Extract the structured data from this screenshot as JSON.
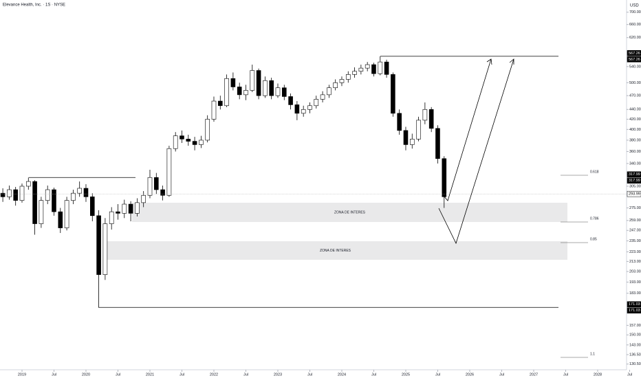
{
  "chart_data": {
    "type": "candlestick",
    "title": "Elevance Health, Inc. · 1S · NYSE",
    "y_axis_label": "USD",
    "log_scale": true,
    "grid": false,
    "ylim": [
      127,
      742
    ],
    "yticks": [
      {
        "value": 700,
        "label": "700.00"
      },
      {
        "value": 660,
        "label": "660.00"
      },
      {
        "value": 620,
        "label": "620.00"
      },
      {
        "value": 540,
        "label": "540.00"
      },
      {
        "value": 500,
        "label": "500.00"
      },
      {
        "value": 470,
        "label": "470.00"
      },
      {
        "value": 440,
        "label": "440.00"
      },
      {
        "value": 420,
        "label": "420.00"
      },
      {
        "value": 400,
        "label": "400.00"
      },
      {
        "value": 380,
        "label": "380.00"
      },
      {
        "value": 360,
        "label": "360.00"
      },
      {
        "value": 340,
        "label": "340.00"
      },
      {
        "value": 305,
        "label": "305.00"
      },
      {
        "value": 275,
        "label": "275.00"
      },
      {
        "value": 259,
        "label": "259.00"
      },
      {
        "value": 247,
        "label": "247.00"
      },
      {
        "value": 235,
        "label": "235.00"
      },
      {
        "value": 223,
        "label": "223.00"
      },
      {
        "value": 213,
        "label": "213.00"
      },
      {
        "value": 203,
        "label": "203.00"
      },
      {
        "value": 193,
        "label": "193.00"
      },
      {
        "value": 183,
        "label": "183.00"
      },
      {
        "value": 157,
        "label": "157.00"
      },
      {
        "value": 150,
        "label": "150.00"
      },
      {
        "value": 143,
        "label": "143.00"
      },
      {
        "value": 136.5,
        "label": "136.50"
      },
      {
        "value": 130.5,
        "label": "130.50"
      }
    ],
    "xlim": [
      2018.656,
      2028.452
    ],
    "xticks": [
      2019,
      {
        "value": 2019.5,
        "label": "Jul"
      },
      2020,
      {
        "value": 2020.5,
        "label": "Jul"
      },
      2021,
      {
        "value": 2021.5,
        "label": "Jul"
      },
      2022,
      {
        "value": 2022.5,
        "label": "Jul"
      },
      2023,
      {
        "value": 2023.5,
        "label": "Jul"
      },
      2024,
      {
        "value": 2024.5,
        "label": "Jul"
      },
      2025,
      {
        "value": 2025.5,
        "label": "Jul"
      },
      2026,
      {
        "value": 2026.5,
        "label": "Jul"
      },
      2027,
      {
        "value": 2027.5,
        "label": "Jul"
      },
      2028,
      {
        "value": 2028.5,
        "label": "Jul"
      }
    ],
    "up_color": "#ffffff",
    "down_color": "#000000",
    "x": [
      2018.7,
      2018.8,
      2018.9,
      2019.0,
      2019.1,
      2019.2,
      2019.3,
      2019.4,
      2019.5,
      2019.6,
      2019.7,
      2019.8,
      2019.9,
      2020.0,
      2020.1,
      2020.2,
      2020.3,
      2020.4,
      2020.5,
      2020.6,
      2020.7,
      2020.8,
      2020.9,
      2021.0,
      2021.1,
      2021.2,
      2021.3,
      2021.4,
      2021.5,
      2021.6,
      2021.7,
      2021.8,
      2021.9,
      2022.0,
      2022.1,
      2022.2,
      2022.3,
      2022.4,
      2022.5,
      2022.6,
      2022.7,
      2022.8,
      2022.9,
      2023.0,
      2023.1,
      2023.2,
      2023.3,
      2023.4,
      2023.5,
      2023.6,
      2023.7,
      2023.8,
      2023.9,
      2024.0,
      2024.1,
      2024.2,
      2024.3,
      2024.4,
      2024.5,
      2024.6,
      2024.7,
      2024.8,
      2024.9,
      2025.0,
      2025.1,
      2025.2,
      2025.3,
      2025.4,
      2025.5,
      2025.6
    ],
    "open": [
      295,
      290,
      300,
      285,
      305,
      312,
      255,
      285,
      300,
      270,
      250,
      285,
      295,
      302,
      290,
      265,
      200,
      255,
      270,
      268,
      280,
      268,
      282,
      292,
      318,
      300,
      292,
      365,
      388,
      382,
      378,
      372,
      380,
      420,
      458,
      448,
      510,
      490,
      472,
      482,
      530,
      470,
      505,
      470,
      488,
      468,
      450,
      432,
      440,
      448,
      462,
      472,
      488,
      500,
      508,
      520,
      528,
      536,
      545,
      522,
      552,
      520,
      432,
      398,
      372,
      382,
      418,
      440,
      402,
      348
    ],
    "high": [
      302,
      306,
      304,
      309,
      318,
      314,
      290,
      306,
      303,
      275,
      290,
      300,
      312,
      308,
      295,
      272,
      262,
      276,
      280,
      286,
      284,
      288,
      298,
      330,
      325,
      306,
      370,
      395,
      398,
      390,
      386,
      388,
      428,
      468,
      470,
      520,
      525,
      500,
      495,
      545,
      535,
      515,
      512,
      498,
      495,
      475,
      458,
      448,
      455,
      470,
      480,
      495,
      508,
      515,
      528,
      538,
      545,
      552,
      550,
      567.26,
      558,
      525,
      440,
      405,
      392,
      425,
      455,
      445,
      408,
      352
    ],
    "low": [
      283,
      286,
      278,
      282,
      300,
      242,
      250,
      280,
      265,
      244,
      247,
      280,
      290,
      283,
      258,
      171.03,
      195,
      248,
      260,
      262,
      258,
      264,
      276,
      288,
      294,
      285,
      290,
      360,
      375,
      370,
      362,
      366,
      376,
      415,
      440,
      445,
      482,
      462,
      460,
      478,
      462,
      465,
      462,
      465,
      460,
      440,
      418,
      425,
      432,
      442,
      455,
      465,
      482,
      492,
      500,
      512,
      520,
      528,
      515,
      518,
      512,
      425,
      390,
      362,
      365,
      378,
      410,
      395,
      340,
      275
    ],
    "close": [
      290,
      300,
      285,
      305,
      312,
      255,
      285,
      300,
      270,
      250,
      285,
      295,
      302,
      290,
      265,
      200,
      255,
      270,
      268,
      280,
      268,
      282,
      292,
      318,
      300,
      292,
      365,
      388,
      382,
      378,
      372,
      380,
      420,
      458,
      448,
      510,
      490,
      472,
      482,
      530,
      470,
      505,
      470,
      488,
      468,
      450,
      432,
      440,
      448,
      462,
      472,
      488,
      500,
      508,
      520,
      528,
      536,
      545,
      522,
      552,
      520,
      432,
      398,
      372,
      382,
      418,
      440,
      402,
      348,
      290
    ],
    "price_labels": [
      {
        "value": 567.26,
        "label": "567.26"
      },
      {
        "value": 317.99,
        "label": "317.99"
      },
      {
        "value": 293.99,
        "label": "293.99"
      },
      {
        "value": 171.03,
        "label": "171.03"
      }
    ],
    "zones": [
      {
        "label": "ZONA DE INTERES"
      },
      {
        "label": "ZONA DE INTERES"
      }
    ],
    "fib_labels": [
      0.618,
      0.786,
      0.85,
      1.1
    ]
  }
}
